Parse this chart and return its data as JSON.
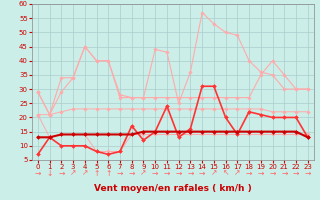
{
  "xlabel": "Vent moyen/en rafales ( km/h )",
  "xlim": [
    -0.5,
    23.5
  ],
  "ylim": [
    5,
    60
  ],
  "yticks": [
    5,
    10,
    15,
    20,
    25,
    30,
    35,
    40,
    45,
    50,
    55,
    60
  ],
  "xticks": [
    0,
    1,
    2,
    3,
    4,
    5,
    6,
    7,
    8,
    9,
    10,
    11,
    12,
    13,
    14,
    15,
    16,
    17,
    18,
    19,
    20,
    21,
    22,
    23
  ],
  "background_color": "#cceee8",
  "grid_color": "#aacccc",
  "series": [
    {
      "label": "gust_high",
      "color": "#ffaaaa",
      "linewidth": 0.8,
      "marker": "D",
      "markersize": 1.8,
      "x": [
        0,
        1,
        2,
        3,
        4,
        5,
        6,
        7,
        8,
        9,
        10,
        11,
        12,
        13,
        14,
        15,
        16,
        17,
        18,
        19,
        20,
        21,
        22,
        23
      ],
      "y": [
        29,
        21,
        34,
        34,
        45,
        40,
        40,
        27,
        27,
        27,
        44,
        43,
        25,
        36,
        57,
        53,
        50,
        49,
        40,
        36,
        35,
        30,
        30,
        30
      ]
    },
    {
      "label": "avg_high",
      "color": "#ffaaaa",
      "linewidth": 0.8,
      "marker": "D",
      "markersize": 1.8,
      "x": [
        0,
        1,
        2,
        3,
        4,
        5,
        6,
        7,
        8,
        9,
        10,
        11,
        12,
        13,
        14,
        15,
        16,
        17,
        18,
        19,
        20,
        21,
        22,
        23
      ],
      "y": [
        29,
        21,
        29,
        34,
        45,
        40,
        40,
        28,
        27,
        27,
        27,
        27,
        27,
        27,
        27,
        27,
        27,
        27,
        27,
        35,
        40,
        35,
        30,
        30
      ]
    },
    {
      "label": "line_34",
      "color": "#ffaaaa",
      "linewidth": 0.7,
      "marker": "D",
      "markersize": 1.8,
      "x": [
        0,
        1,
        2,
        3,
        4,
        5,
        6,
        7,
        8,
        9,
        10,
        11,
        12,
        13,
        14,
        15,
        16,
        17,
        18,
        19,
        20,
        21,
        22,
        23
      ],
      "y": [
        21,
        21,
        22,
        23,
        23,
        23,
        23,
        23,
        23,
        23,
        23,
        23,
        23,
        23,
        23,
        23,
        23,
        23,
        23,
        23,
        22,
        22,
        22,
        22
      ]
    },
    {
      "label": "line_low_light",
      "color": "#ffaaaa",
      "linewidth": 0.7,
      "marker": "D",
      "markersize": 1.8,
      "x": [
        0,
        1,
        2,
        3,
        4,
        5,
        6,
        7,
        8,
        9,
        10,
        11,
        12,
        13,
        14,
        15,
        16,
        17,
        18,
        19,
        20,
        21,
        22,
        23
      ],
      "y": [
        21,
        13,
        14,
        14,
        14,
        8,
        8,
        8,
        14,
        14,
        14,
        14,
        14,
        14,
        14,
        14,
        14,
        14,
        14,
        14,
        14,
        14,
        14,
        14
      ]
    },
    {
      "label": "wind_vary",
      "color": "#ff3333",
      "linewidth": 1.2,
      "marker": "D",
      "markersize": 2.0,
      "x": [
        0,
        1,
        2,
        3,
        4,
        5,
        6,
        7,
        8,
        9,
        10,
        11,
        12,
        13,
        14,
        15,
        16,
        17,
        18,
        19,
        20,
        21,
        22,
        23
      ],
      "y": [
        7,
        13,
        10,
        10,
        10,
        8,
        7,
        8,
        17,
        12,
        15,
        24,
        13,
        16,
        31,
        31,
        20,
        14,
        22,
        21,
        20,
        20,
        20,
        13
      ]
    },
    {
      "label": "wind_base",
      "color": "#cc0000",
      "linewidth": 1.5,
      "marker": "D",
      "markersize": 2.0,
      "x": [
        0,
        1,
        2,
        3,
        4,
        5,
        6,
        7,
        8,
        9,
        10,
        11,
        12,
        13,
        14,
        15,
        16,
        17,
        18,
        19,
        20,
        21,
        22,
        23
      ],
      "y": [
        13,
        13,
        14,
        14,
        14,
        14,
        14,
        14,
        14,
        15,
        15,
        15,
        15,
        15,
        15,
        15,
        15,
        15,
        15,
        15,
        15,
        15,
        15,
        13
      ]
    }
  ],
  "arrow_labels": [
    "→",
    "↓",
    "→",
    "↗",
    "↗",
    "↑",
    "↑",
    "→",
    "→",
    "↗",
    "→",
    "→",
    "→",
    "→",
    "→",
    "↗",
    "↖",
    "↗",
    "→",
    "→",
    "→",
    "→",
    "→",
    "→"
  ],
  "arrow_color": "#ff6666",
  "arrow_fontsize": 5.5,
  "xlabel_color": "#cc0000",
  "xlabel_fontsize": 6.5,
  "tick_fontsize": 5,
  "tick_color": "#cc0000"
}
